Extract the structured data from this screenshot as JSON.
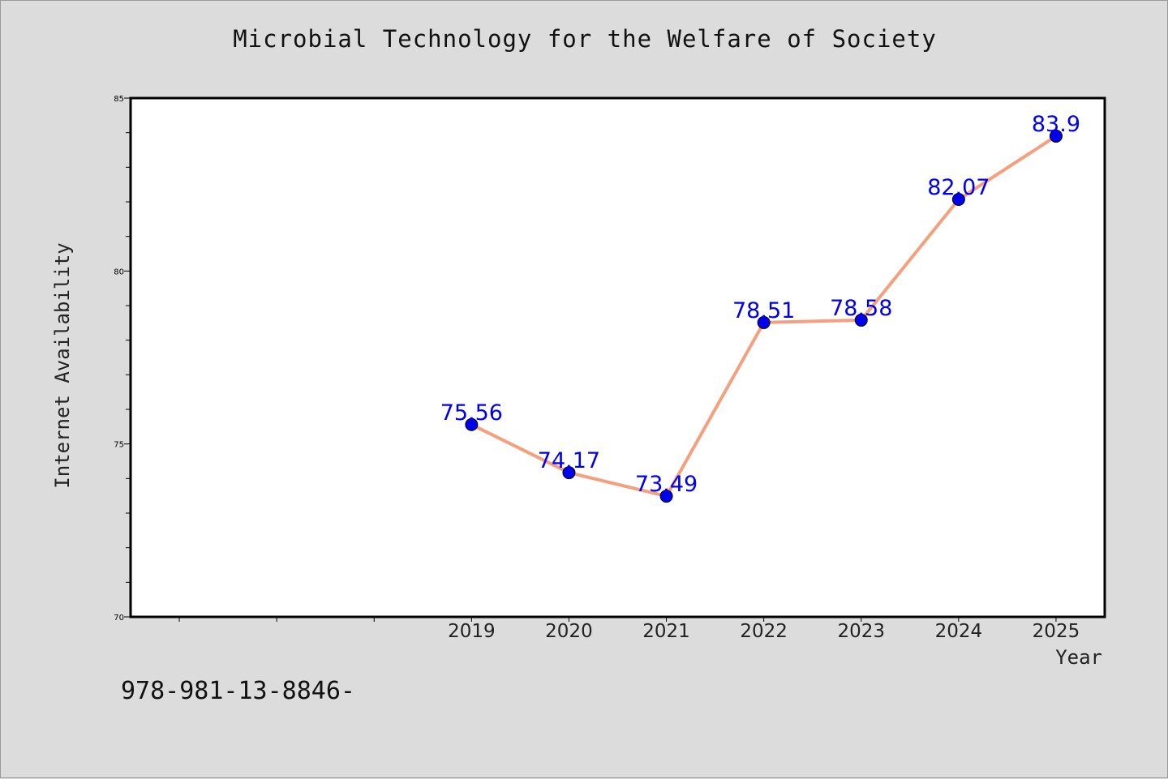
{
  "chart_data": {
    "type": "line",
    "title": "Microbial Technology for the Welfare of Society",
    "xlabel": "Year",
    "ylabel": "Internet Availability",
    "categories": [
      "2019",
      "2020",
      "2021",
      "2022",
      "2023",
      "2024",
      "2025"
    ],
    "values": [
      75.56,
      74.17,
      73.49,
      78.51,
      78.58,
      82.07,
      83.9
    ],
    "data_labels": [
      "75.56",
      "74.17",
      "73.49",
      "78.51",
      "78.58",
      "82.07",
      "83.9"
    ],
    "ylim": [
      70,
      85
    ],
    "y_ticks": [
      70,
      75,
      80,
      85
    ],
    "y_tick_labels": [
      "70",
      "75",
      "80",
      "85"
    ],
    "x_slots": 10,
    "x_first_category_slot": 3,
    "grid": false,
    "line_color": "#f4a07e",
    "marker_color": "#0000ee",
    "label_color": "#0000ee"
  },
  "footer": {
    "isbn": "978-981-13-8846-"
  }
}
